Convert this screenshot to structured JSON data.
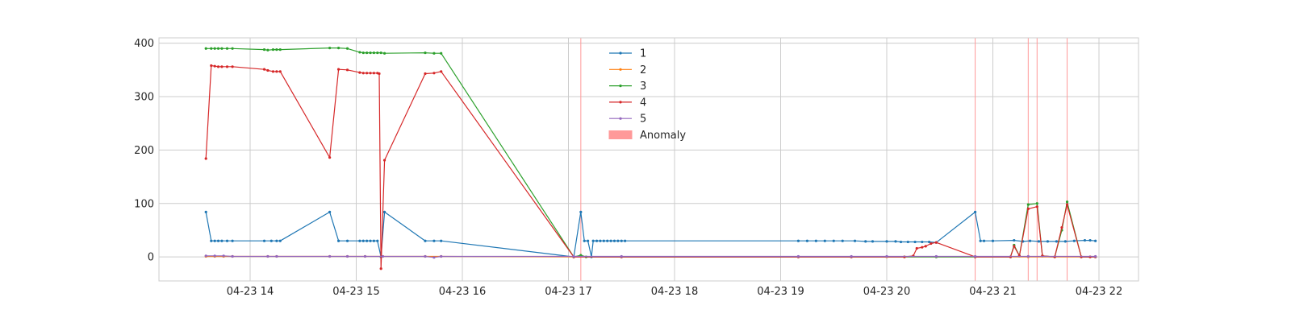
{
  "chart_data": {
    "type": "line",
    "title": "",
    "xlabel": "",
    "ylabel": "",
    "xaxis": {
      "type": "time",
      "ticks": [
        "04-23 14",
        "04-23 15",
        "04-23 16",
        "04-23 17",
        "04-23 18",
        "04-23 19",
        "04-23 20",
        "04-23 21",
        "04-23 22"
      ]
    },
    "ylim": [
      -45,
      410
    ],
    "yticks": [
      0,
      100,
      200,
      300,
      400
    ],
    "grid": true,
    "legend_position": "top-center",
    "series": [
      {
        "name": "1",
        "color": "#1f77b4",
        "points": [
          [
            "2024-04-23 13:35",
            84
          ],
          [
            "2024-04-23 13:38",
            30
          ],
          [
            "2024-04-23 13:40",
            30
          ],
          [
            "2024-04-23 13:42",
            30
          ],
          [
            "2024-04-23 13:44",
            30
          ],
          [
            "2024-04-23 13:47",
            30
          ],
          [
            "2024-04-23 13:50",
            30
          ],
          [
            "2024-04-23 14:08",
            30
          ],
          [
            "2024-04-23 14:12",
            30
          ],
          [
            "2024-04-23 14:15",
            30
          ],
          [
            "2024-04-23 14:17",
            30
          ],
          [
            "2024-04-23 14:45",
            84
          ],
          [
            "2024-04-23 14:50",
            30
          ],
          [
            "2024-04-23 14:55",
            30
          ],
          [
            "2024-04-23 15:02",
            30
          ],
          [
            "2024-04-23 15:04",
            30
          ],
          [
            "2024-04-23 15:06",
            30
          ],
          [
            "2024-04-23 15:08",
            30
          ],
          [
            "2024-04-23 15:10",
            30
          ],
          [
            "2024-04-23 15:12",
            30
          ],
          [
            "2024-04-23 15:14",
            0
          ],
          [
            "2024-04-23 15:16",
            84
          ],
          [
            "2024-04-23 15:39",
            30
          ],
          [
            "2024-04-23 15:44",
            30
          ],
          [
            "2024-04-23 15:48",
            30
          ],
          [
            "2024-04-23 17:03",
            0
          ],
          [
            "2024-04-23 17:07",
            84
          ],
          [
            "2024-04-23 17:09",
            30
          ],
          [
            "2024-04-23 17:11",
            30
          ],
          [
            "2024-04-23 17:13",
            0
          ],
          [
            "2024-04-23 17:14",
            30
          ],
          [
            "2024-04-23 17:16",
            30
          ],
          [
            "2024-04-23 17:18",
            30
          ],
          [
            "2024-04-23 17:20",
            30
          ],
          [
            "2024-04-23 17:22",
            30
          ],
          [
            "2024-04-23 17:24",
            30
          ],
          [
            "2024-04-23 17:26",
            30
          ],
          [
            "2024-04-23 17:28",
            30
          ],
          [
            "2024-04-23 17:30",
            30
          ],
          [
            "2024-04-23 17:32",
            30
          ],
          [
            "2024-04-23 19:10",
            30
          ],
          [
            "2024-04-23 19:15",
            30
          ],
          [
            "2024-04-23 19:20",
            30
          ],
          [
            "2024-04-23 19:25",
            30
          ],
          [
            "2024-04-23 19:30",
            30
          ],
          [
            "2024-04-23 19:35",
            30
          ],
          [
            "2024-04-23 19:42",
            30
          ],
          [
            "2024-04-23 19:48",
            29
          ],
          [
            "2024-04-23 19:52",
            29
          ],
          [
            "2024-04-23 20:00",
            29
          ],
          [
            "2024-04-23 20:05",
            29
          ],
          [
            "2024-04-23 20:08",
            28
          ],
          [
            "2024-04-23 20:12",
            28
          ],
          [
            "2024-04-23 20:16",
            28
          ],
          [
            "2024-04-23 20:20",
            28
          ],
          [
            "2024-04-23 20:24",
            28
          ],
          [
            "2024-04-23 20:28",
            27
          ],
          [
            "2024-04-23 20:50",
            84
          ],
          [
            "2024-04-23 20:53",
            30
          ],
          [
            "2024-04-23 20:55",
            30
          ],
          [
            "2024-04-23 21:00",
            30
          ],
          [
            "2024-04-23 21:12",
            31
          ],
          [
            "2024-04-23 21:17",
            29
          ],
          [
            "2024-04-23 21:21",
            30
          ],
          [
            "2024-04-23 21:26",
            29
          ],
          [
            "2024-04-23 21:31",
            29
          ],
          [
            "2024-04-23 21:36",
            29
          ],
          [
            "2024-04-23 21:41",
            29
          ],
          [
            "2024-04-23 21:46",
            30
          ],
          [
            "2024-04-23 21:52",
            31
          ],
          [
            "2024-04-23 21:55",
            31
          ],
          [
            "2024-04-23 21:58",
            30
          ]
        ]
      },
      {
        "name": "2",
        "color": "#ff7f0e",
        "points": [
          [
            "2024-04-23 13:35",
            1
          ],
          [
            "2024-04-23 13:40",
            1
          ],
          [
            "2024-04-23 13:45",
            1
          ],
          [
            "2024-04-23 13:50",
            1
          ],
          [
            "2024-04-23 14:10",
            1
          ],
          [
            "2024-04-23 14:15",
            1
          ],
          [
            "2024-04-23 14:45",
            1
          ],
          [
            "2024-04-23 14:55",
            1
          ],
          [
            "2024-04-23 15:05",
            1
          ],
          [
            "2024-04-23 15:15",
            1
          ],
          [
            "2024-04-23 15:39",
            1
          ],
          [
            "2024-04-23 15:48",
            1
          ],
          [
            "2024-04-23 17:03",
            0
          ],
          [
            "2024-04-23 17:30",
            0
          ],
          [
            "2024-04-23 19:10",
            0
          ],
          [
            "2024-04-23 19:40",
            0
          ],
          [
            "2024-04-23 20:00",
            0
          ],
          [
            "2024-04-23 20:28",
            0
          ],
          [
            "2024-04-23 20:50",
            0
          ],
          [
            "2024-04-23 21:20",
            0
          ],
          [
            "2024-04-23 21:58",
            0
          ]
        ]
      },
      {
        "name": "3",
        "color": "#2ca02c",
        "points": [
          [
            "2024-04-23 13:35",
            390
          ],
          [
            "2024-04-23 13:38",
            390
          ],
          [
            "2024-04-23 13:40",
            390
          ],
          [
            "2024-04-23 13:42",
            390
          ],
          [
            "2024-04-23 13:44",
            390
          ],
          [
            "2024-04-23 13:47",
            390
          ],
          [
            "2024-04-23 13:50",
            390
          ],
          [
            "2024-04-23 14:08",
            388
          ],
          [
            "2024-04-23 14:10",
            387
          ],
          [
            "2024-04-23 14:13",
            388
          ],
          [
            "2024-04-23 14:15",
            388
          ],
          [
            "2024-04-23 14:17",
            388
          ],
          [
            "2024-04-23 14:45",
            391
          ],
          [
            "2024-04-23 14:50",
            391
          ],
          [
            "2024-04-23 14:55",
            390
          ],
          [
            "2024-04-23 15:02",
            383
          ],
          [
            "2024-04-23 15:04",
            382
          ],
          [
            "2024-04-23 15:06",
            382
          ],
          [
            "2024-04-23 15:08",
            382
          ],
          [
            "2024-04-23 15:10",
            382
          ],
          [
            "2024-04-23 15:12",
            382
          ],
          [
            "2024-04-23 15:14",
            382
          ],
          [
            "2024-04-23 15:16",
            381
          ],
          [
            "2024-04-23 15:39",
            382
          ],
          [
            "2024-04-23 15:44",
            381
          ],
          [
            "2024-04-23 15:48",
            381
          ],
          [
            "2024-04-23 17:03",
            0
          ],
          [
            "2024-04-23 17:07",
            3
          ],
          [
            "2024-04-23 17:10",
            0
          ],
          [
            "2024-04-23 17:30",
            0
          ],
          [
            "2024-04-23 19:10",
            0
          ],
          [
            "2024-04-23 19:40",
            0
          ],
          [
            "2024-04-23 20:10",
            0
          ],
          [
            "2024-04-23 20:28",
            0
          ],
          [
            "2024-04-23 20:50",
            0
          ],
          [
            "2024-04-23 21:10",
            0
          ],
          [
            "2024-04-23 21:12",
            22
          ],
          [
            "2024-04-23 21:15",
            2
          ],
          [
            "2024-04-23 21:20",
            98
          ],
          [
            "2024-04-23 21:25",
            100
          ],
          [
            "2024-04-23 21:28",
            2
          ],
          [
            "2024-04-23 21:35",
            0
          ],
          [
            "2024-04-23 21:39",
            50
          ],
          [
            "2024-04-23 21:42",
            103
          ],
          [
            "2024-04-23 21:50",
            0
          ],
          [
            "2024-04-23 21:55",
            0
          ],
          [
            "2024-04-23 21:58",
            0
          ]
        ]
      },
      {
        "name": "4",
        "color": "#d62728",
        "points": [
          [
            "2024-04-23 13:35",
            184
          ],
          [
            "2024-04-23 13:38",
            358
          ],
          [
            "2024-04-23 13:40",
            357
          ],
          [
            "2024-04-23 13:42",
            356
          ],
          [
            "2024-04-23 13:44",
            356
          ],
          [
            "2024-04-23 13:47",
            356
          ],
          [
            "2024-04-23 13:50",
            356
          ],
          [
            "2024-04-23 14:08",
            351
          ],
          [
            "2024-04-23 14:10",
            349
          ],
          [
            "2024-04-23 14:13",
            347
          ],
          [
            "2024-04-23 14:15",
            347
          ],
          [
            "2024-04-23 14:17",
            347
          ],
          [
            "2024-04-23 14:45",
            186
          ],
          [
            "2024-04-23 14:50",
            351
          ],
          [
            "2024-04-23 14:55",
            350
          ],
          [
            "2024-04-23 15:02",
            345
          ],
          [
            "2024-04-23 15:04",
            344
          ],
          [
            "2024-04-23 15:06",
            344
          ],
          [
            "2024-04-23 15:08",
            344
          ],
          [
            "2024-04-23 15:10",
            344
          ],
          [
            "2024-04-23 15:12",
            344
          ],
          [
            "2024-04-23 15:13",
            343
          ],
          [
            "2024-04-23 15:14",
            -22
          ],
          [
            "2024-04-23 15:16",
            181
          ],
          [
            "2024-04-23 15:39",
            343
          ],
          [
            "2024-04-23 15:44",
            344
          ],
          [
            "2024-04-23 15:48",
            347
          ],
          [
            "2024-04-23 17:03",
            0
          ],
          [
            "2024-04-23 17:30",
            0
          ],
          [
            "2024-04-23 19:10",
            0
          ],
          [
            "2024-04-23 19:40",
            0
          ],
          [
            "2024-04-23 20:10",
            0
          ],
          [
            "2024-04-23 20:15",
            2
          ],
          [
            "2024-04-23 20:17",
            16
          ],
          [
            "2024-04-23 20:20",
            18
          ],
          [
            "2024-04-23 20:22",
            20
          ],
          [
            "2024-04-23 20:25",
            25
          ],
          [
            "2024-04-23 20:28",
            27
          ],
          [
            "2024-04-23 20:50",
            0
          ],
          [
            "2024-04-23 21:10",
            0
          ],
          [
            "2024-04-23 21:12",
            20
          ],
          [
            "2024-04-23 21:15",
            2
          ],
          [
            "2024-04-23 21:20",
            90
          ],
          [
            "2024-04-23 21:25",
            94
          ],
          [
            "2024-04-23 21:28",
            2
          ],
          [
            "2024-04-23 21:35",
            0
          ],
          [
            "2024-04-23 21:39",
            55
          ],
          [
            "2024-04-23 21:42",
            98
          ],
          [
            "2024-04-23 21:50",
            0
          ],
          [
            "2024-04-23 21:55",
            0
          ],
          [
            "2024-04-23 21:58",
            0
          ]
        ]
      },
      {
        "name": "5",
        "color": "#9467bd",
        "points": [
          [
            "2024-04-23 13:35",
            2
          ],
          [
            "2024-04-23 13:40",
            2
          ],
          [
            "2024-04-23 13:45",
            2
          ],
          [
            "2024-04-23 13:50",
            1
          ],
          [
            "2024-04-23 14:10",
            1
          ],
          [
            "2024-04-23 14:15",
            1
          ],
          [
            "2024-04-23 14:45",
            1
          ],
          [
            "2024-04-23 14:55",
            1
          ],
          [
            "2024-04-23 15:05",
            1
          ],
          [
            "2024-04-23 15:15",
            1
          ],
          [
            "2024-04-23 15:39",
            1
          ],
          [
            "2024-04-23 15:44",
            -1
          ],
          [
            "2024-04-23 15:48",
            1
          ],
          [
            "2024-04-23 17:03",
            1
          ],
          [
            "2024-04-23 17:30",
            1
          ],
          [
            "2024-04-23 19:10",
            1
          ],
          [
            "2024-04-23 19:40",
            1
          ],
          [
            "2024-04-23 20:00",
            1
          ],
          [
            "2024-04-23 20:28",
            1
          ],
          [
            "2024-04-23 20:50",
            1
          ],
          [
            "2024-04-23 21:20",
            1
          ],
          [
            "2024-04-23 21:58",
            1
          ]
        ]
      }
    ],
    "anomalies": [
      "2024-04-23 17:07",
      "2024-04-23 20:50",
      "2024-04-23 21:20",
      "2024-04-23 21:25",
      "2024-04-23 21:42"
    ],
    "anomaly_color": "#ff9999",
    "anomaly_label": "Anomaly"
  }
}
